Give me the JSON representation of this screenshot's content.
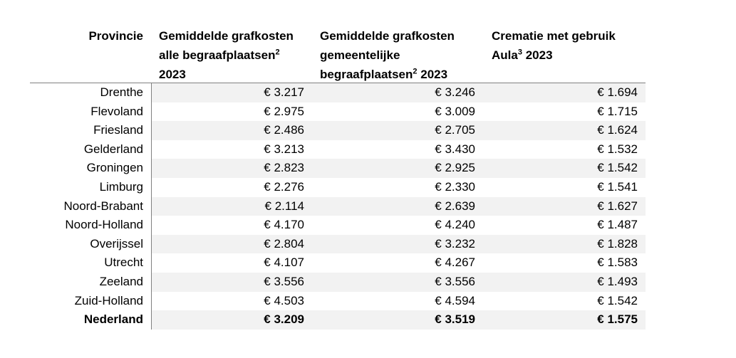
{
  "table": {
    "columns": [
      {
        "label": "Provincie"
      },
      {
        "label": "Gemiddelde grafkosten alle begraafplaatsen",
        "sup": "2",
        "after": "2023"
      },
      {
        "label": "Gemiddelde grafkosten gemeentelijke begraafplaatsen",
        "sup": "2",
        "after": "2023"
      },
      {
        "label": "Crematie met gebruik Aula",
        "sup": "3",
        "after": "2023"
      }
    ],
    "rows": [
      [
        "Drenthe",
        "€ 3.217",
        "€ 3.246",
        "€ 1.694"
      ],
      [
        "Flevoland",
        "€ 2.975",
        "€ 3.009",
        "€ 1.715"
      ],
      [
        "Friesland",
        "€ 2.486",
        "€ 2.705",
        "€ 1.624"
      ],
      [
        "Gelderland",
        "€ 3.213",
        "€ 3.430",
        "€ 1.532"
      ],
      [
        "Groningen",
        "€ 2.823",
        "€ 2.925",
        "€ 1.542"
      ],
      [
        "Limburg",
        "€ 2.276",
        "€ 2.330",
        "€ 1.541"
      ],
      [
        "Noord-Brabant",
        "€ 2.114",
        "€ 2.639",
        "€ 1.627"
      ],
      [
        "Noord-Holland",
        "€ 4.170",
        "€ 4.240",
        "€ 1.487"
      ],
      [
        "Overijssel",
        "€ 2.804",
        "€ 3.232",
        "€ 1.828"
      ],
      [
        "Utrecht",
        "€ 4.107",
        "€ 4.267",
        "€ 1.583"
      ],
      [
        "Zeeland",
        "€ 3.556",
        "€ 3.556",
        "€ 1.493"
      ],
      [
        "Zuid-Holland",
        "€ 4.503",
        "€ 4.594",
        "€ 1.542"
      ]
    ],
    "total": [
      "Nederland",
      "€ 3.209",
      "€ 3.519",
      "€ 1.575"
    ]
  }
}
